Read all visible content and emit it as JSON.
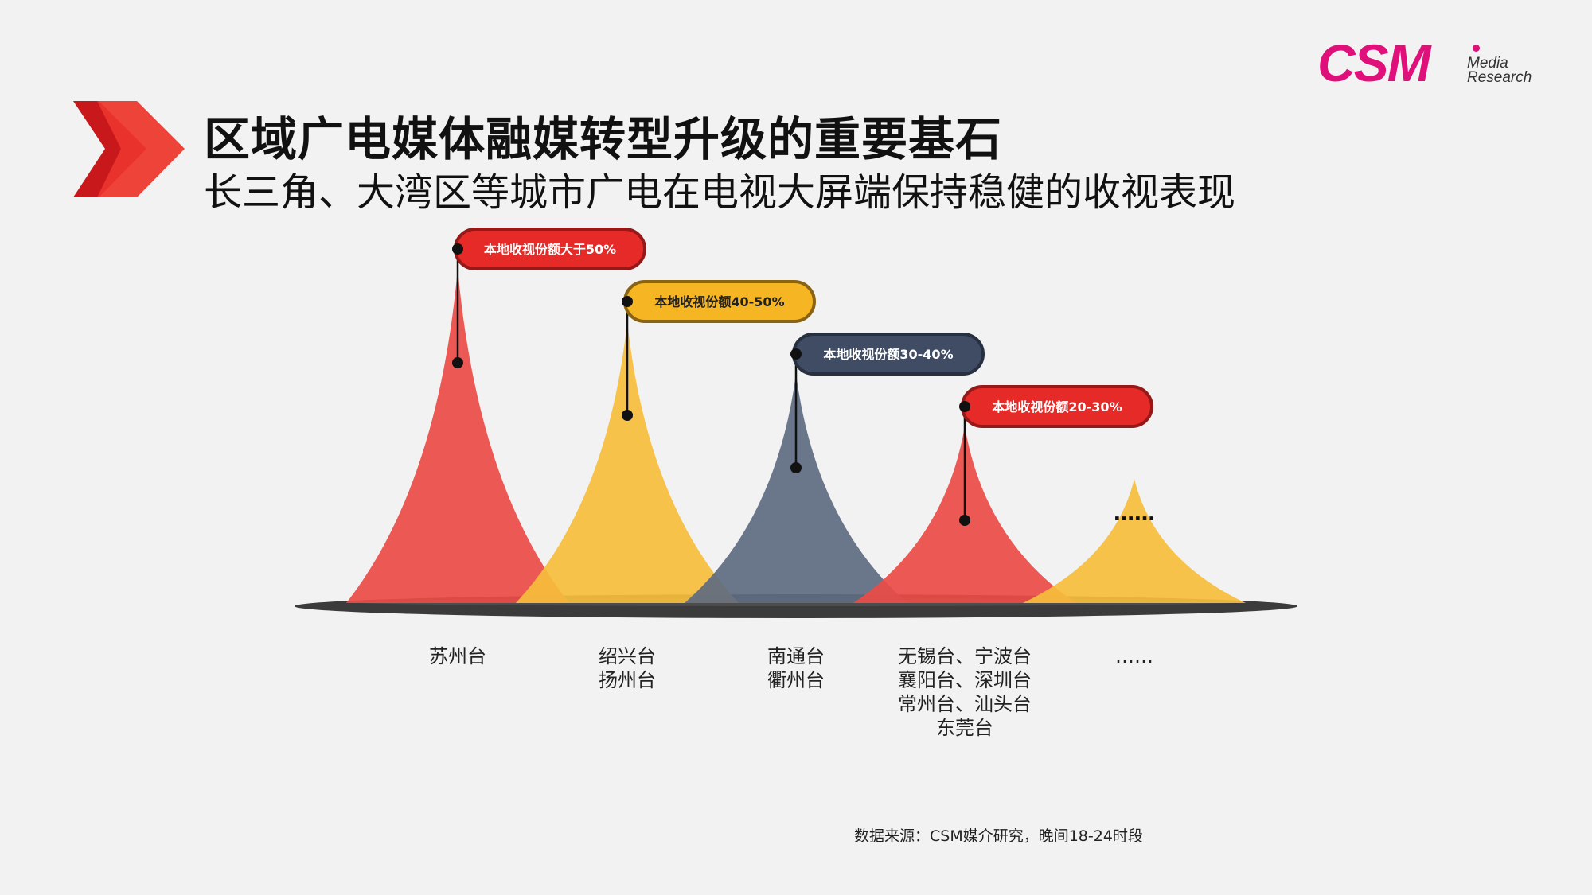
{
  "header": {
    "title": "区域广电媒体融媒转型升级的重要基石",
    "subtitle": "长三角、大湾区等城市广电在电视大屏端保持稳健的收视表现"
  },
  "logo": {
    "mark": "CSM",
    "line1": "Media",
    "line2": "Research"
  },
  "chart_data": {
    "type": "area",
    "categories": [
      [
        "苏州台"
      ],
      [
        "绍兴台",
        "扬州台"
      ],
      [
        "南通台",
        "衢州台"
      ],
      [
        "无锡台、宁波台",
        "襄阳台、深圳台",
        "常州台、汕头台",
        "东莞台"
      ],
      [
        "……"
      ]
    ],
    "levels": [
      5,
      4,
      3,
      2,
      1
    ],
    "tags": [
      "本地收视份额大于50%",
      "本地收视份额40-50%",
      "本地收视份额30-40%",
      "本地收视份额20-30%",
      "……"
    ],
    "colors": [
      "#ec4c47",
      "#f6be3c",
      "#5e6b80",
      "#ec4c47",
      "#f6be3c"
    ],
    "tag_colors": [
      {
        "fill": "#e62a27",
        "stroke": "#96191a",
        "text": "#ffffff"
      },
      {
        "fill": "#f6b624",
        "stroke": "#8a6412",
        "text": "#222222"
      },
      {
        "fill": "#3f4c63",
        "stroke": "#26303f",
        "text": "#ffffff"
      },
      {
        "fill": "#e62a27",
        "stroke": "#96191a",
        "text": "#ffffff"
      }
    ]
  },
  "source": "数据来源：CSM媒介研究，晚间18-24时段"
}
